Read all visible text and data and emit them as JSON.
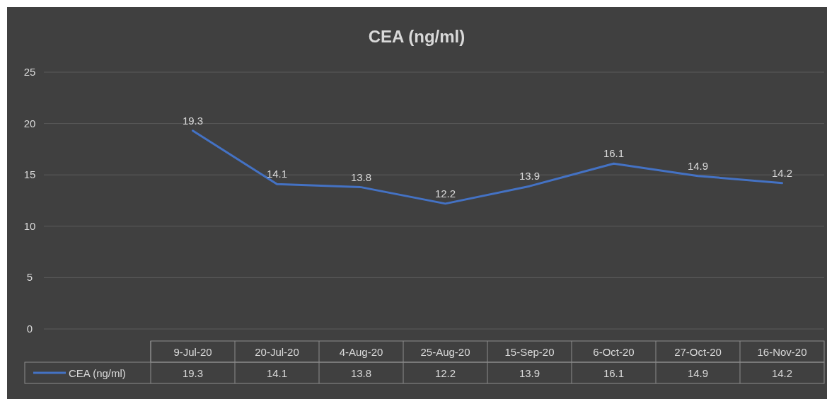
{
  "chart_data": {
    "type": "line",
    "title": "CEA (ng/ml)",
    "categories": [
      "9-Jul-20",
      "20-Jul-20",
      "4-Aug-20",
      "25-Aug-20",
      "15-Sep-20",
      "6-Oct-20",
      "27-Oct-20",
      "16-Nov-20"
    ],
    "series": [
      {
        "name": "CEA (ng/ml)",
        "color": "#4472c4",
        "values": [
          19.3,
          14.1,
          13.8,
          12.2,
          13.9,
          16.1,
          14.9,
          14.2
        ]
      }
    ],
    "annotations": [
      {
        "text": "19.3",
        "x": "9-Jul-20",
        "y": 19.3
      },
      {
        "text": "14.1",
        "x": "20-Jul-20",
        "y": 14.1
      },
      {
        "text": "13.8",
        "x": "4-Aug-20",
        "y": 13.8
      },
      {
        "text": "12.2",
        "x": "25-Aug-20",
        "y": 12.2
      },
      {
        "text": "13.9",
        "x": "15-Sep-20",
        "y": 13.9
      },
      {
        "text": "16.1",
        "x": "6-Oct-20",
        "y": 16.1
      },
      {
        "text": "14.9",
        "x": "27-Oct-20",
        "y": 14.9
      },
      {
        "text": "14.2",
        "x": "16-Nov-20",
        "y": 14.2
      }
    ],
    "ylim": [
      0,
      25
    ],
    "yticks": [
      0,
      5,
      10,
      15,
      20,
      25
    ],
    "grid": "y",
    "legend": "bottom",
    "data_labels": true,
    "marker": "none",
    "line_style": "solid"
  }
}
